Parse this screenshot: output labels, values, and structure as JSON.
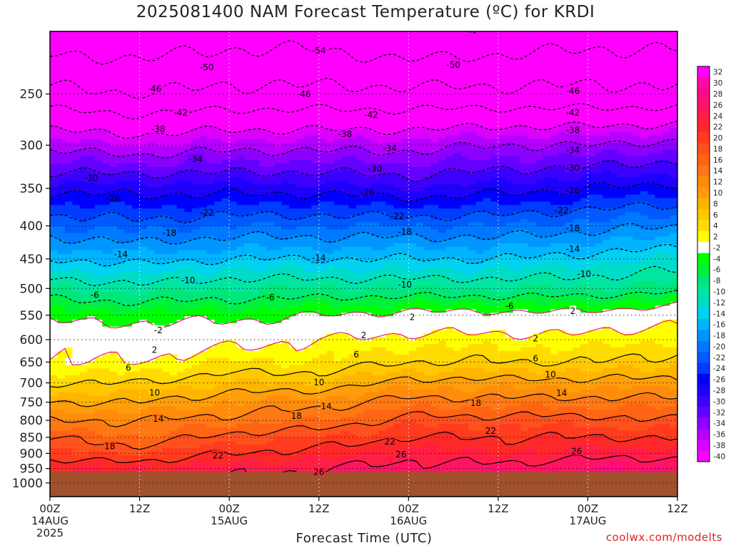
{
  "title": "2025081400 NAM Forecast Temperature (ºC) for KRDI",
  "xlabel": "Forecast Time (UTC)",
  "credit": "coolwx.com/modelts",
  "chart_data": {
    "type": "heatmap",
    "y_scale": "log-pressure",
    "ylim": [
      1050,
      200
    ],
    "xlim": [
      0,
      84
    ],
    "y_ticks": [
      250,
      300,
      350,
      400,
      450,
      500,
      550,
      600,
      650,
      700,
      750,
      800,
      850,
      900,
      950,
      1000
    ],
    "x_ticks": [
      {
        "h": 0,
        "lines": [
          "00Z",
          "14AUG",
          "2025"
        ]
      },
      {
        "h": 12,
        "lines": [
          "12Z"
        ]
      },
      {
        "h": 24,
        "lines": [
          "00Z",
          "15AUG"
        ]
      },
      {
        "h": 36,
        "lines": [
          "12Z"
        ]
      },
      {
        "h": 48,
        "lines": [
          "00Z",
          "16AUG"
        ]
      },
      {
        "h": 60,
        "lines": [
          "12Z"
        ]
      },
      {
        "h": 72,
        "lines": [
          "00Z",
          "17AUG"
        ]
      },
      {
        "h": 84,
        "lines": [
          "12Z"
        ]
      }
    ],
    "surface_pressure": 962,
    "grid": true,
    "colorbar": {
      "levels": [
        32,
        30,
        28,
        26,
        24,
        22,
        20,
        18,
        16,
        14,
        12,
        10,
        8,
        6,
        4,
        2,
        -2,
        -4,
        -6,
        -8,
        -10,
        -12,
        -14,
        -16,
        -18,
        -20,
        -22,
        -24,
        -26,
        -28,
        -30,
        -32,
        -34,
        -36,
        -38,
        -40
      ],
      "colors": [
        "#ff00ff",
        "#ff0aaa",
        "#ff0a82",
        "#ff1464",
        "#ff1e46",
        "#ff2828",
        "#ff3c1e",
        "#ff501e",
        "#ff6414",
        "#ff7814",
        "#ff8c0a",
        "#ff9e0a",
        "#ffb400",
        "#ffc800",
        "#ffdc00",
        "#ffff00",
        "#ffffff",
        "#00ff00",
        "#00f03c",
        "#00e678",
        "#00e6a0",
        "#00dcc8",
        "#00d2f0",
        "#00b4ff",
        "#0096ff",
        "#0078ff",
        "#005aff",
        "#003cff",
        "#0000ff",
        "#1e00ff",
        "#3c00ff",
        "#6400ff",
        "#8c00ff",
        "#b400ff",
        "#dc00ff",
        "#ff00ff"
      ]
    },
    "profile_pressures": [
      1000,
      950,
      900,
      850,
      800,
      750,
      700,
      650,
      600,
      550,
      500,
      450,
      400,
      350,
      300,
      250,
      200
    ],
    "profile_times": [
      0,
      12,
      24,
      36,
      48,
      60,
      72,
      84
    ],
    "temperature_profiles": [
      [
        25,
        24,
        20,
        18,
        14,
        10,
        6,
        2,
        1,
        -3,
        -8,
        -14,
        -20,
        -27,
        -35,
        -45,
        -53
      ],
      [
        25,
        24,
        20,
        16,
        14,
        10,
        6,
        2,
        0,
        -3,
        -9,
        -15,
        -21,
        -27,
        -36,
        -46,
        -53
      ],
      [
        26,
        25,
        22,
        19,
        15,
        12,
        8,
        4,
        1,
        -3,
        -8,
        -14,
        -20,
        -27,
        -35,
        -45,
        -52
      ],
      [
        27,
        26,
        23,
        20,
        16,
        13,
        8,
        4,
        2,
        -2,
        -8,
        -14,
        -20,
        -27,
        -35,
        -45,
        -52
      ],
      [
        28,
        27,
        25,
        22,
        19,
        15,
        11,
        6,
        3,
        -1,
        -8,
        -14,
        -20,
        -28,
        -35,
        -45,
        -54
      ],
      [
        28,
        27,
        24,
        22,
        19,
        15,
        11,
        6,
        3,
        -1,
        -8,
        -14,
        -20,
        -27,
        -34,
        -45,
        -53
      ],
      [
        30,
        28,
        25,
        22,
        19,
        15,
        11,
        6,
        3,
        -1,
        -8,
        -13,
        -19,
        -26,
        -34,
        -45,
        -52
      ],
      [
        29,
        28,
        25,
        22,
        18,
        15,
        11,
        7,
        4,
        1,
        -7,
        -12,
        -18,
        -25,
        -33,
        -45,
        -52
      ]
    ],
    "contour_labels": [
      {
        "v": -54,
        "h": 36,
        "p": 214
      },
      {
        "v": -50,
        "h": 21,
        "p": 227
      },
      {
        "v": -50,
        "h": 54,
        "p": 225
      },
      {
        "v": -46,
        "h": 14,
        "p": 245
      },
      {
        "v": -46,
        "h": 34,
        "p": 250
      },
      {
        "v": -46,
        "h": 70,
        "p": 247
      },
      {
        "v": -42,
        "h": 17.5,
        "p": 267
      },
      {
        "v": -42,
        "h": 43,
        "p": 269
      },
      {
        "v": -42,
        "h": 70,
        "p": 267
      },
      {
        "v": -38,
        "h": 14.5,
        "p": 283
      },
      {
        "v": -38,
        "h": 39.5,
        "p": 288
      },
      {
        "v": -38,
        "h": 70,
        "p": 284
      },
      {
        "v": -34,
        "h": 19.5,
        "p": 315
      },
      {
        "v": -34,
        "h": 45.5,
        "p": 303
      },
      {
        "v": -34,
        "h": 70,
        "p": 305
      },
      {
        "v": -30,
        "h": 5.5,
        "p": 337
      },
      {
        "v": -30,
        "h": 43.5,
        "p": 326
      },
      {
        "v": -30,
        "h": 70,
        "p": 325
      },
      {
        "v": -26,
        "h": 8.5,
        "p": 362
      },
      {
        "v": -26,
        "h": 42.5,
        "p": 355
      },
      {
        "v": -26,
        "h": 70,
        "p": 352
      },
      {
        "v": -22,
        "h": 21,
        "p": 381
      },
      {
        "v": -22,
        "h": 46.5,
        "p": 386
      },
      {
        "v": -22,
        "h": 68.5,
        "p": 378
      },
      {
        "v": -18,
        "h": 16,
        "p": 410
      },
      {
        "v": -18,
        "h": 47.5,
        "p": 408
      },
      {
        "v": -18,
        "h": 70,
        "p": 403
      },
      {
        "v": -14,
        "h": 9.5,
        "p": 442
      },
      {
        "v": -14,
        "h": 36,
        "p": 448
      },
      {
        "v": -14,
        "h": 70,
        "p": 434
      },
      {
        "v": -10,
        "h": 18.5,
        "p": 485
      },
      {
        "v": -10,
        "h": 47.5,
        "p": 493
      },
      {
        "v": -10,
        "h": 71.5,
        "p": 474
      },
      {
        "v": -6,
        "h": 6,
        "p": 511
      },
      {
        "v": -6,
        "h": 29.5,
        "p": 516
      },
      {
        "v": -6,
        "h": 61.5,
        "p": 532
      },
      {
        "v": -2,
        "h": 14.5,
        "p": 580
      },
      {
        "v": 2,
        "h": 48.5,
        "p": 553
      },
      {
        "v": 2,
        "h": 70,
        "p": 541
      },
      {
        "v": 2,
        "h": 14,
        "p": 622
      },
      {
        "v": 2,
        "h": 42,
        "p": 590
      },
      {
        "v": 2,
        "h": 65,
        "p": 597
      },
      {
        "v": 6,
        "h": 10.5,
        "p": 663
      },
      {
        "v": 6,
        "h": 41,
        "p": 632
      },
      {
        "v": 6,
        "h": 65,
        "p": 641
      },
      {
        "v": 10,
        "h": 14,
        "p": 724
      },
      {
        "v": 10,
        "h": 36,
        "p": 698
      },
      {
        "v": 10,
        "h": 67,
        "p": 679
      },
      {
        "v": 14,
        "h": 14.5,
        "p": 795
      },
      {
        "v": 14,
        "h": 37,
        "p": 760
      },
      {
        "v": 14,
        "h": 68.5,
        "p": 725
      },
      {
        "v": 18,
        "h": 8,
        "p": 876
      },
      {
        "v": 18,
        "h": 33,
        "p": 787
      },
      {
        "v": 18,
        "h": 57,
        "p": 752
      },
      {
        "v": 22,
        "h": 22.5,
        "p": 906
      },
      {
        "v": 22,
        "h": 45.5,
        "p": 862
      },
      {
        "v": 22,
        "h": 59,
        "p": 830
      },
      {
        "v": 26,
        "h": 36,
        "p": 960
      },
      {
        "v": 26,
        "h": 47,
        "p": 902
      },
      {
        "v": 26,
        "h": 70.5,
        "p": 892
      }
    ]
  }
}
